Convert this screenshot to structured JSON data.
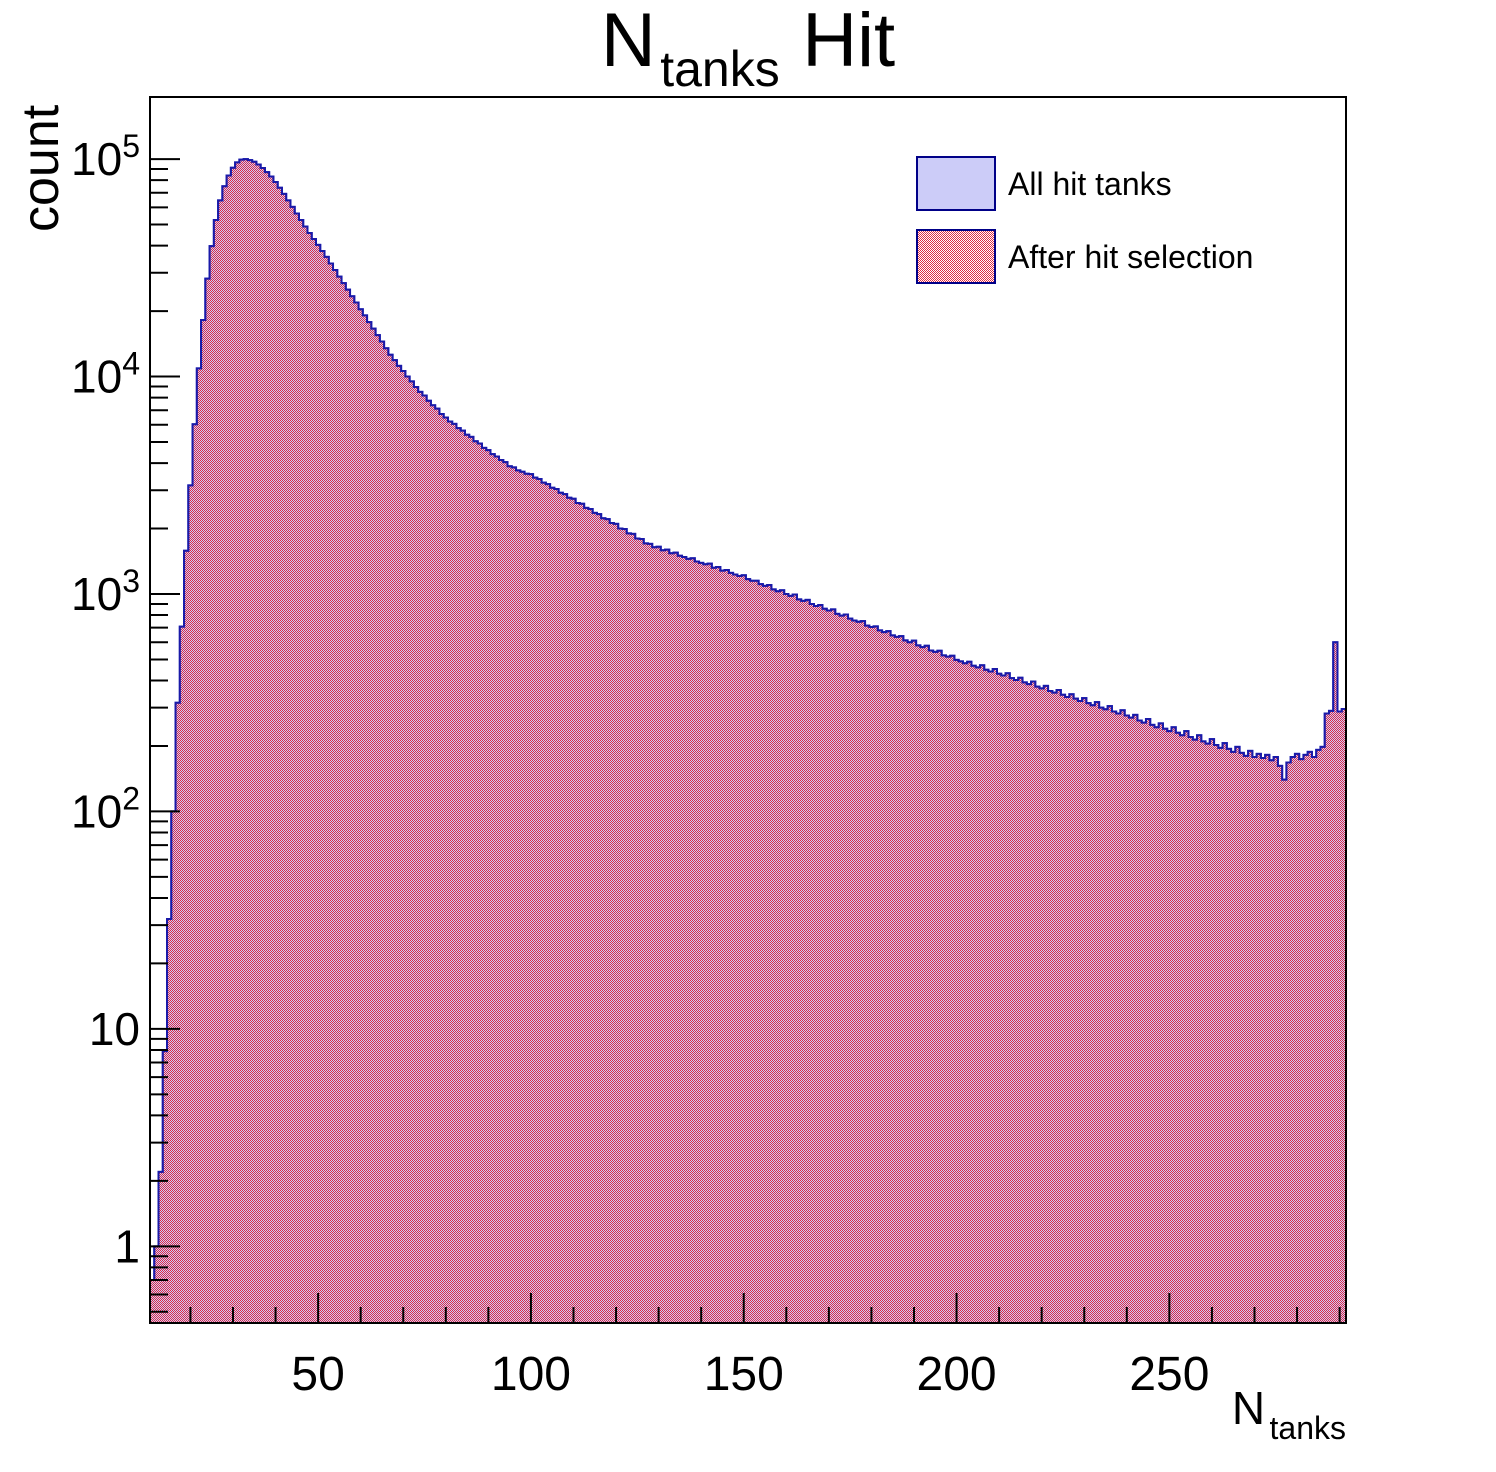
{
  "title": {
    "main": "N",
    "sub": "tanks",
    "rest": "Hit"
  },
  "y_axis": {
    "label": "count",
    "scale": "log",
    "decade_labels": [
      {
        "v": 100000,
        "base": "10",
        "exp": "5"
      },
      {
        "v": 10000,
        "base": "10",
        "exp": "4"
      },
      {
        "v": 1000,
        "base": "10",
        "exp": "3"
      },
      {
        "v": 100,
        "base": "10",
        "exp": "2"
      },
      {
        "v": 10,
        "base": "10",
        "exp": ""
      },
      {
        "v": 1,
        "base": "1",
        "exp": ""
      }
    ]
  },
  "x_axis": {
    "label_main": "N",
    "label_sub": "tanks",
    "major_ticks": [
      50,
      100,
      150,
      200,
      250
    ],
    "minor_tick_step": 10
  },
  "legend": {
    "items": [
      {
        "label": "All hit tanks",
        "swatch": "solid-lavender"
      },
      {
        "label": "After hit selection",
        "swatch": "red-checker-hatch"
      }
    ]
  },
  "colors": {
    "all_fill": "#ccccf8",
    "all_stroke": "#2233cc",
    "after_hatch_red": "#df2b43",
    "after_stroke": "#1a1aa8",
    "legend_border": "#000088",
    "axis": "#000000"
  },
  "chart_data": {
    "type": "bar",
    "subtype": "step-histogram-log-y",
    "title": "N_tanks Hit",
    "xlabel": "N_tanks",
    "ylabel": "count",
    "x_range": [
      10.5,
      291.5
    ],
    "y_range": [
      0.444,
      193000
    ],
    "y_scale": "log",
    "bin_start": 11,
    "bin_width": 1,
    "series": [
      {
        "name": "All hit tanks",
        "values": [
          0.7,
          1,
          2.2,
          7.9,
          32,
          100,
          316,
          708,
          1580,
          3160,
          6030,
          10900,
          18200,
          28200,
          39800,
          52500,
          64600,
          75000,
          84100,
          91200,
          96600,
          99500,
          100000,
          98900,
          97200,
          94500,
          91000,
          87100,
          83200,
          78500,
          73800,
          69200,
          64600,
          60300,
          56200,
          52500,
          49000,
          45700,
          42900,
          40300,
          37800,
          35500,
          33100,
          30900,
          28800,
          26900,
          25100,
          23400,
          21900,
          20400,
          19100,
          17800,
          16600,
          15500,
          14500,
          13500,
          12600,
          11900,
          11200,
          10600,
          10000,
          9500,
          8950,
          8500,
          8180,
          7740,
          7380,
          7120,
          6730,
          6480,
          6210,
          6060,
          5790,
          5640,
          5400,
          5280,
          5040,
          4920,
          4700,
          4590,
          4400,
          4290,
          4130,
          4040,
          3870,
          3820,
          3700,
          3650,
          3570,
          3560,
          3430,
          3380,
          3250,
          3200,
          3080,
          3040,
          2920,
          2880,
          2770,
          2740,
          2620,
          2600,
          2490,
          2460,
          2360,
          2330,
          2230,
          2210,
          2120,
          2100,
          2000,
          1990,
          1900,
          1890,
          1800,
          1790,
          1710,
          1700,
          1640,
          1650,
          1590,
          1600,
          1540,
          1550,
          1500,
          1480,
          1450,
          1460,
          1410,
          1390,
          1370,
          1380,
          1320,
          1330,
          1280,
          1290,
          1250,
          1230,
          1210,
          1220,
          1170,
          1150,
          1150,
          1110,
          1090,
          1100,
          1050,
          1030,
          1040,
          1000,
          980,
          995,
          945,
          930,
          940,
          900,
          880,
          890,
          855,
          840,
          850,
          810,
          795,
          805,
          770,
          755,
          745,
          750,
          715,
          705,
          710,
          680,
          668,
          675,
          645,
          635,
          640,
          612,
          600,
          610,
          580,
          570,
          578,
          550,
          542,
          548,
          522,
          515,
          520,
          498,
          490,
          480,
          488,
          468,
          460,
          470,
          448,
          440,
          452,
          430,
          422,
          432,
          410,
          402,
          412,
          392,
          385,
          396,
          375,
          368,
          378,
          358,
          352,
          362,
          344,
          336,
          346,
          330,
          322,
          332,
          315,
          308,
          318,
          300,
          295,
          305,
          288,
          282,
          292,
          276,
          270,
          278,
          262,
          256,
          266,
          250,
          244,
          254,
          240,
          234,
          244,
          230,
          224,
          234,
          220,
          214,
          224,
          210,
          205,
          215,
          202,
          196,
          206,
          194,
          188,
          198,
          186,
          180,
          190,
          178,
          184,
          176,
          182,
          172,
          178,
          162,
          140,
          168,
          178,
          184,
          174,
          182,
          188,
          178,
          192,
          198,
          282,
          290,
          600,
          288,
          296
        ]
      },
      {
        "name": "After hit selection",
        "values_ref": 0,
        "note": "visually identical to 'All hit tanks' within pixel resolution"
      }
    ]
  }
}
